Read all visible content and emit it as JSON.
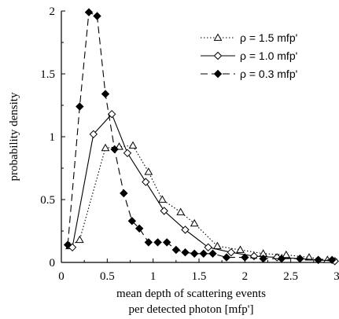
{
  "chart_data": {
    "type": "line",
    "xlabel_lines": [
      "mean depth of scattering events",
      "per detected photon   [mfp']"
    ],
    "ylabel": "probability density",
    "xlim": [
      0,
      3
    ],
    "ylim": [
      0,
      2
    ],
    "xticks": [
      0,
      0.5,
      1,
      1.5,
      2,
      2.5,
      3
    ],
    "xtick_labels": [
      "0",
      "0.5",
      "1",
      "1.5",
      "2",
      "2.5",
      "3"
    ],
    "yticks": [
      0,
      0.5,
      1,
      1.5,
      2
    ],
    "ytick_labels": [
      "0",
      "0.5",
      "1",
      "1.5",
      "2"
    ],
    "grid": false,
    "legend_position": "top-right",
    "series": [
      {
        "name": "ρ = 1.5 mfp'",
        "marker": "triangle-open",
        "line": "dotted",
        "x": [
          0.09,
          0.2,
          0.48,
          0.63,
          0.78,
          0.95,
          1.1,
          1.3,
          1.45,
          1.7,
          1.95,
          2.2,
          2.45,
          2.7,
          2.9
        ],
        "y": [
          0.13,
          0.18,
          0.91,
          0.92,
          0.93,
          0.72,
          0.5,
          0.4,
          0.31,
          0.13,
          0.1,
          0.07,
          0.06,
          0.04,
          0.02
        ]
      },
      {
        "name": "ρ = 1.0 mfp'",
        "marker": "diamond-open",
        "line": "solid",
        "x": [
          0.12,
          0.35,
          0.55,
          0.72,
          0.92,
          1.12,
          1.35,
          1.6,
          1.85,
          2.1,
          2.35,
          2.6,
          2.8,
          2.98
        ],
        "y": [
          0.12,
          1.02,
          1.18,
          0.87,
          0.64,
          0.41,
          0.26,
          0.12,
          0.08,
          0.05,
          0.04,
          0.03,
          0.02,
          0.01
        ]
      },
      {
        "name": "ρ = 0.3 mfp'",
        "marker": "diamond-filled",
        "line": "dashed",
        "x": [
          0.07,
          0.2,
          0.3,
          0.39,
          0.48,
          0.58,
          0.68,
          0.77,
          0.85,
          0.95,
          1.05,
          1.15,
          1.25,
          1.35,
          1.45,
          1.55,
          1.65,
          1.8,
          2.0,
          2.2,
          2.4,
          2.6,
          2.8,
          2.95
        ],
        "y": [
          0.14,
          1.24,
          1.99,
          1.96,
          1.34,
          0.9,
          0.55,
          0.33,
          0.27,
          0.16,
          0.16,
          0.16,
          0.1,
          0.08,
          0.07,
          0.07,
          0.07,
          0.04,
          0.04,
          0.03,
          0.03,
          0.03,
          0.02,
          0.02
        ]
      }
    ]
  }
}
